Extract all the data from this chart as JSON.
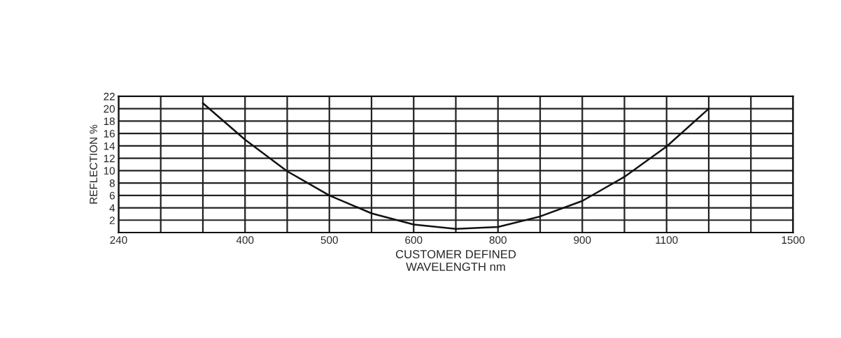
{
  "chart_data": {
    "type": "line",
    "xlabel": "CUSTOMER DEFINED\nWAVELENGTH nm",
    "ylabel": "REFLECTION %",
    "categories": [
      "240",
      null,
      null,
      "400",
      null,
      "500",
      null,
      "600",
      null,
      "800",
      null,
      "900",
      null,
      "1100",
      null,
      null,
      "1500"
    ],
    "series": [
      {
        "color": "#111111",
        "values": [
          null,
          null,
          20.9,
          15.0,
          9.9,
          6.0,
          3.1,
          1.3,
          0.6,
          0.9,
          2.6,
          5.1,
          9.0,
          13.9,
          20.0,
          null,
          null
        ]
      }
    ],
    "ylim": [
      0,
      22
    ],
    "yticks": [
      2,
      4,
      6,
      8,
      10,
      12,
      14,
      16,
      18,
      20,
      22
    ],
    "grid": true,
    "marker": "none",
    "line_style": "solid"
  }
}
